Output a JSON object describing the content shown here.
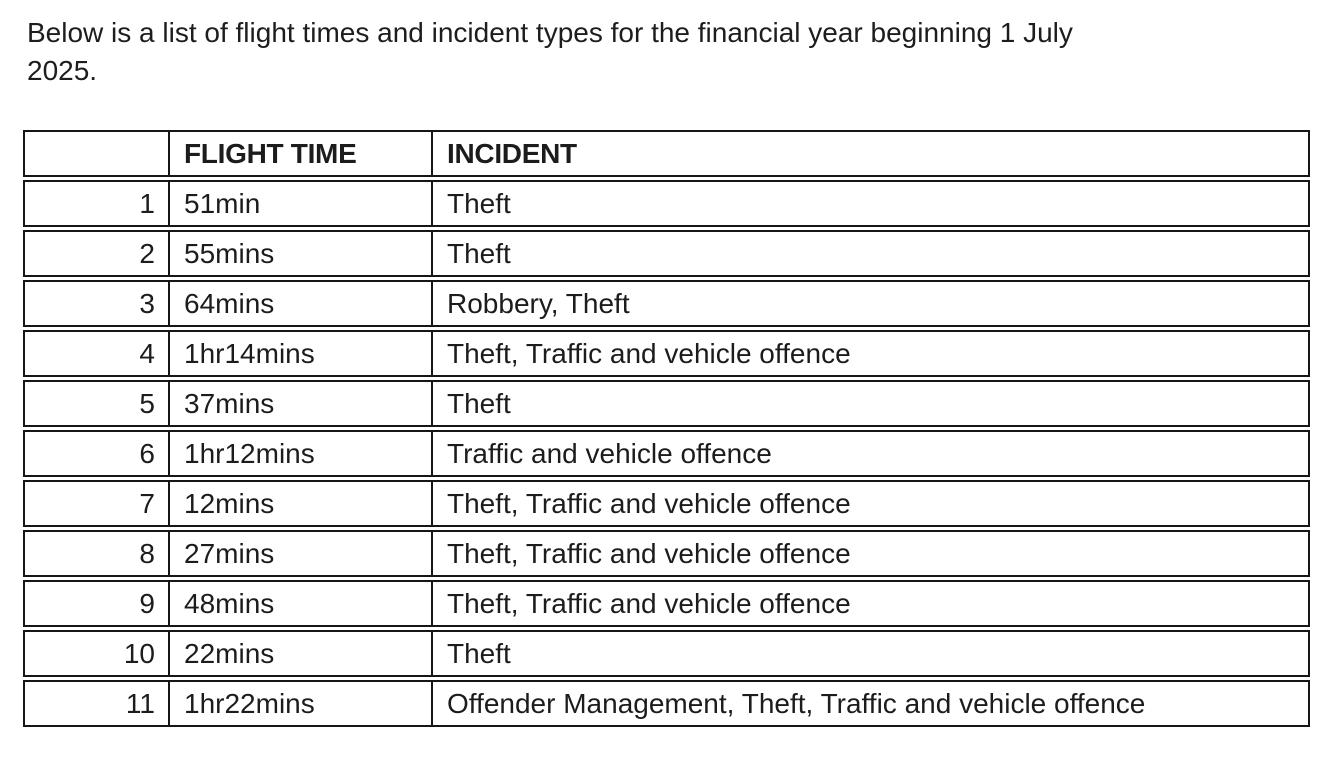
{
  "intro": {
    "line1": "Below is a list of flight times and incident types for the financial year beginning 1 July",
    "line2": "2025."
  },
  "table": {
    "headers": [
      "",
      "FLIGHT TIME",
      "INCIDENT"
    ],
    "rows": [
      {
        "num": "1",
        "flight_time": "51min",
        "incident": "Theft"
      },
      {
        "num": "2",
        "flight_time": "55mins",
        "incident": "Theft"
      },
      {
        "num": "3",
        "flight_time": "64mins",
        "incident": "Robbery, Theft"
      },
      {
        "num": "4",
        "flight_time": "1hr14mins",
        "incident": "Theft, Traffic and vehicle offence"
      },
      {
        "num": "5",
        "flight_time": "37mins",
        "incident": "Theft"
      },
      {
        "num": "6",
        "flight_time": "1hr12mins",
        "incident": "Traffic and vehicle offence"
      },
      {
        "num": "7",
        "flight_time": "12mins",
        "incident": "Theft, Traffic and vehicle offence"
      },
      {
        "num": "8",
        "flight_time": "27mins",
        "incident": "Theft, Traffic and vehicle offence"
      },
      {
        "num": "9",
        "flight_time": "48mins",
        "incident": "Theft, Traffic and vehicle offence"
      },
      {
        "num": "10",
        "flight_time": "22mins",
        "incident": "Theft"
      },
      {
        "num": "11",
        "flight_time": "1hr22mins",
        "incident": "Offender Management, Theft, Traffic and vehicle offence"
      }
    ]
  },
  "colors": {
    "text": "#1c1c1c",
    "border": "#161616",
    "background": "#ffffff"
  }
}
